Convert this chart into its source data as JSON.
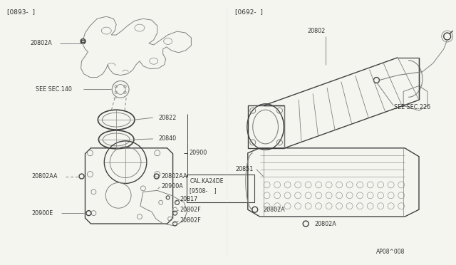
{
  "bg_color": "#f5f5f0",
  "line_color": "#808080",
  "dark_line": "#404040",
  "text_color": "#303030",
  "fig_width": 6.4,
  "fig_height": 3.72,
  "left_bracket": "[0893-  ]",
  "right_bracket": "[0692-  ]",
  "diagram_code": "AP08^008"
}
